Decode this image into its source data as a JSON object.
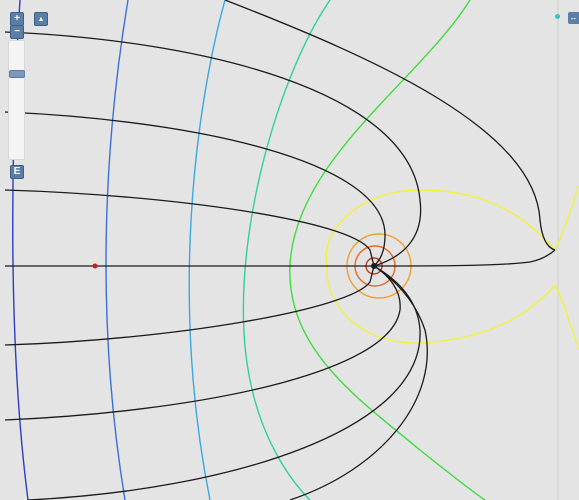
{
  "controls": {
    "zoom_in_label": "+",
    "zoom_out_label": "−",
    "pointer_label": "▲",
    "e_label": "E",
    "expand_label": "↔"
  },
  "icons": {
    "zoom_in": "plus-icon",
    "zoom_out": "minus-icon",
    "pointer": "pointer-icon",
    "expand": "expand-icon"
  },
  "colors": {
    "background": "#e4e4e4",
    "field_lines": "#1a1a1a",
    "equipotential_near": "#f0a030",
    "equipotential_yellow": "#f2f23a",
    "equipotential_green": "#3fdc3f",
    "equipotential_teal": "#2fd0a0",
    "equipotential_blue": "#3a8fe0",
    "equipotential_darkblue": "#2a3fc0",
    "charge_marker": "#c02020",
    "control_blue": "#5b7ea6"
  }
}
